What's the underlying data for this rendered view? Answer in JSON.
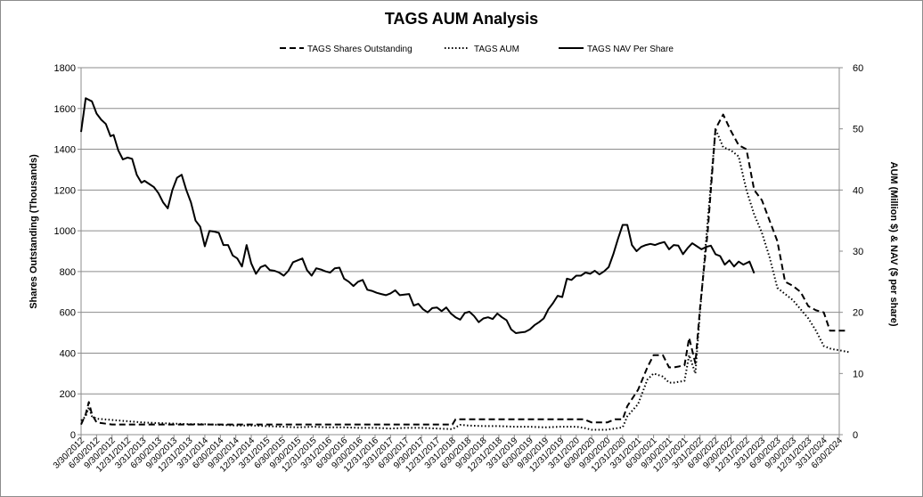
{
  "chart_data": {
    "type": "line",
    "title": "TAGS AUM Analysis",
    "ylabel_left": "Shares Outstanding (Thousands)",
    "ylabel_right": "AUM (Million $) & NAV ($ per share)",
    "ylim_left": [
      0,
      1800
    ],
    "ylim_right": [
      0,
      60
    ],
    "yticks_left": [
      "0",
      "200",
      "400",
      "600",
      "800",
      "1000",
      "1200",
      "1400",
      "1600",
      "1800"
    ],
    "yticks_right": [
      "0",
      "10",
      "20",
      "30",
      "40",
      "50",
      "60"
    ],
    "grid": "horizontal",
    "legend_position": "top",
    "x_dates": [
      "3/30/2012",
      "6/30/2012",
      "9/30/2012",
      "12/31/2012",
      "3/31/2013",
      "6/30/2013",
      "9/30/2013",
      "12/31/2013",
      "3/31/2014",
      "6/30/2014",
      "9/30/2014",
      "12/31/2014",
      "3/31/2015",
      "6/30/2015",
      "9/30/2015",
      "12/31/2015",
      "3/31/2016",
      "6/30/2016",
      "9/30/2016",
      "12/31/2016",
      "3/31/2017",
      "6/30/2017",
      "9/30/2017",
      "12/31/2017",
      "3/31/2018",
      "6/30/2018",
      "9/30/2018",
      "12/31/2018",
      "3/31/2019",
      "6/30/2019",
      "9/30/2019",
      "12/31/2019",
      "3/31/2020",
      "6/30/2020",
      "9/30/2020",
      "12/31/2020",
      "3/31/2021",
      "6/30/2021",
      "9/30/2021",
      "12/31/2021",
      "3/31/2022",
      "6/30/2022",
      "9/30/2022",
      "12/31/2022",
      "3/31/2023",
      "6/30/2023",
      "9/30/2023",
      "12/31/2023",
      "3/31/2024",
      "6/30/2024"
    ],
    "series": [
      {
        "name": "TAGS Shares Outstanding",
        "axis": "left",
        "style": "dashed",
        "color": "#000000",
        "points": [
          [
            0,
            50
          ],
          [
            0.3,
            100
          ],
          [
            0.5,
            160
          ],
          [
            0.7,
            100
          ],
          [
            1,
            60
          ],
          [
            2,
            50
          ],
          [
            3,
            50
          ],
          [
            4,
            50
          ],
          [
            5,
            50
          ],
          [
            6,
            50
          ],
          [
            7,
            50
          ],
          [
            8,
            50
          ],
          [
            9,
            50
          ],
          [
            10,
            50
          ],
          [
            11,
            50
          ],
          [
            12,
            50
          ],
          [
            13,
            50
          ],
          [
            14,
            50
          ],
          [
            15,
            50
          ],
          [
            16,
            50
          ],
          [
            17,
            50
          ],
          [
            18,
            50
          ],
          [
            19,
            50
          ],
          [
            20,
            50
          ],
          [
            21,
            50
          ],
          [
            22,
            50
          ],
          [
            23,
            50
          ],
          [
            24,
            50
          ],
          [
            24.2,
            75
          ],
          [
            25,
            75
          ],
          [
            26,
            75
          ],
          [
            27,
            75
          ],
          [
            28,
            75
          ],
          [
            29,
            75
          ],
          [
            30,
            75
          ],
          [
            31,
            75
          ],
          [
            32,
            75
          ],
          [
            32.5,
            75
          ],
          [
            33,
            60
          ],
          [
            34,
            60
          ],
          [
            34.5,
            75
          ],
          [
            35,
            75
          ],
          [
            35.3,
            140
          ],
          [
            36,
            220
          ],
          [
            36.6,
            330
          ],
          [
            37,
            390
          ],
          [
            37.6,
            390
          ],
          [
            38,
            330
          ],
          [
            38.3,
            330
          ],
          [
            39,
            340
          ],
          [
            39.3,
            475
          ],
          [
            39.7,
            350
          ],
          [
            40,
            620
          ],
          [
            40.5,
            1000
          ],
          [
            41,
            1500
          ],
          [
            41.5,
            1570
          ],
          [
            42,
            1490
          ],
          [
            42.5,
            1420
          ],
          [
            43,
            1400
          ],
          [
            43.5,
            1200
          ],
          [
            44,
            1150
          ],
          [
            44.5,
            1050
          ],
          [
            45,
            950
          ],
          [
            45.5,
            750
          ],
          [
            46,
            730
          ],
          [
            46.5,
            700
          ],
          [
            47,
            630
          ],
          [
            47.5,
            610
          ],
          [
            48,
            600
          ],
          [
            48.4,
            510
          ],
          [
            49,
            510
          ],
          [
            49.6,
            510
          ]
        ]
      },
      {
        "name": "TAGS AUM",
        "axis": "right",
        "style": "dotted",
        "color": "#000000",
        "points": [
          [
            0,
            2.3
          ],
          [
            0.3,
            3
          ],
          [
            0.5,
            4.5
          ],
          [
            0.7,
            3
          ],
          [
            1,
            2.6
          ],
          [
            2,
            2.4
          ],
          [
            3,
            2.2
          ],
          [
            4,
            2
          ],
          [
            5,
            1.9
          ],
          [
            6,
            1.8
          ],
          [
            7,
            1.7
          ],
          [
            8,
            1.7
          ],
          [
            9,
            1.6
          ],
          [
            10,
            1.5
          ],
          [
            11,
            1.5
          ],
          [
            12,
            1.4
          ],
          [
            13,
            1.3
          ],
          [
            14,
            1.2
          ],
          [
            15,
            1.3
          ],
          [
            16,
            1.2
          ],
          [
            17,
            1.2
          ],
          [
            18,
            1.1
          ],
          [
            19,
            1.1
          ],
          [
            20,
            1
          ],
          [
            21,
            1.1
          ],
          [
            22,
            1.1
          ],
          [
            23,
            1
          ],
          [
            24,
            0.9
          ],
          [
            24.5,
            1.6
          ],
          [
            25,
            1.5
          ],
          [
            26,
            1.4
          ],
          [
            27,
            1.4
          ],
          [
            28,
            1.3
          ],
          [
            29,
            1.3
          ],
          [
            30,
            1.2
          ],
          [
            31,
            1.3
          ],
          [
            32,
            1.3
          ],
          [
            32.5,
            1.1
          ],
          [
            33,
            0.8
          ],
          [
            34,
            0.8
          ],
          [
            34.5,
            1
          ],
          [
            35,
            1.2
          ],
          [
            35.3,
            3
          ],
          [
            36,
            5
          ],
          [
            36.6,
            9
          ],
          [
            37,
            10
          ],
          [
            37.6,
            9.5
          ],
          [
            38,
            8.5
          ],
          [
            38.3,
            8.5
          ],
          [
            39,
            8.8
          ],
          [
            39.3,
            13
          ],
          [
            39.7,
            10
          ],
          [
            40,
            20
          ],
          [
            40.5,
            35
          ],
          [
            41,
            50
          ],
          [
            41.5,
            47
          ],
          [
            42,
            46.5
          ],
          [
            42.5,
            45.5
          ],
          [
            43,
            40
          ],
          [
            43.5,
            36
          ],
          [
            44,
            33
          ],
          [
            44.5,
            29
          ],
          [
            45,
            24
          ],
          [
            45.5,
            23
          ],
          [
            46,
            22
          ],
          [
            46.5,
            20.5
          ],
          [
            47,
            19
          ],
          [
            47.5,
            17
          ],
          [
            48,
            14.5
          ],
          [
            48.5,
            14
          ],
          [
            49,
            13.8
          ],
          [
            49.6,
            13.5
          ]
        ]
      },
      {
        "name": "TAGS NAV Per Share",
        "axis": "right",
        "style": "solid",
        "color": "#000000",
        "points": [
          [
            0,
            49.5
          ],
          [
            0.3,
            55
          ],
          [
            0.7,
            54.5
          ],
          [
            1,
            52.5
          ],
          [
            1.3,
            51.5
          ],
          [
            1.6,
            50.8
          ],
          [
            1.9,
            48.8
          ],
          [
            2.1,
            49
          ],
          [
            2.4,
            46.5
          ],
          [
            2.7,
            45
          ],
          [
            3,
            45.3
          ],
          [
            3.3,
            45.1
          ],
          [
            3.6,
            42.5
          ],
          [
            3.9,
            41.2
          ],
          [
            4.1,
            41.5
          ],
          [
            4.4,
            41
          ],
          [
            4.7,
            40.5
          ],
          [
            5,
            39.5
          ],
          [
            5.3,
            38
          ],
          [
            5.6,
            37
          ],
          [
            5.9,
            40
          ],
          [
            6.2,
            42
          ],
          [
            6.5,
            42.5
          ],
          [
            6.8,
            40
          ],
          [
            7.1,
            38
          ],
          [
            7.4,
            35
          ],
          [
            7.7,
            34
          ],
          [
            8,
            30.8
          ],
          [
            8.3,
            33.3
          ],
          [
            8.6,
            33.2
          ],
          [
            8.9,
            33
          ],
          [
            9.2,
            31
          ],
          [
            9.5,
            31
          ],
          [
            9.8,
            29.3
          ],
          [
            10.1,
            28.8
          ],
          [
            10.4,
            27.5
          ],
          [
            10.7,
            31
          ],
          [
            11,
            28
          ],
          [
            11.3,
            26.3
          ],
          [
            11.6,
            27.4
          ],
          [
            11.9,
            27.7
          ],
          [
            12.2,
            26.9
          ],
          [
            12.5,
            26.8
          ],
          [
            12.8,
            26.5
          ],
          [
            13.1,
            26
          ],
          [
            13.4,
            26.8
          ],
          [
            13.7,
            28.2
          ],
          [
            14,
            28.5
          ],
          [
            14.3,
            28.8
          ],
          [
            14.6,
            26.9
          ],
          [
            14.9,
            26
          ],
          [
            15.2,
            27.2
          ],
          [
            15.5,
            27
          ],
          [
            15.8,
            26.7
          ],
          [
            16.1,
            26.5
          ],
          [
            16.4,
            27.2
          ],
          [
            16.7,
            27.3
          ],
          [
            17,
            25.5
          ],
          [
            17.3,
            25
          ],
          [
            17.6,
            24.3
          ],
          [
            17.9,
            25
          ],
          [
            18.2,
            25.3
          ],
          [
            18.5,
            23.7
          ],
          [
            18.8,
            23.5
          ],
          [
            19.1,
            23.2
          ],
          [
            19.4,
            23
          ],
          [
            19.7,
            22.8
          ],
          [
            20,
            23.1
          ],
          [
            20.3,
            23.6
          ],
          [
            20.6,
            22.8
          ],
          [
            20.9,
            22.9
          ],
          [
            21.2,
            23
          ],
          [
            21.5,
            21.1
          ],
          [
            21.8,
            21.4
          ],
          [
            22.1,
            20.5
          ],
          [
            22.4,
            20
          ],
          [
            22.7,
            20.7
          ],
          [
            23,
            20.8
          ],
          [
            23.3,
            20.2
          ],
          [
            23.6,
            20.8
          ],
          [
            23.9,
            19.8
          ],
          [
            24.2,
            19.2
          ],
          [
            24.5,
            18.8
          ],
          [
            24.8,
            19.9
          ],
          [
            25.1,
            20.1
          ],
          [
            25.4,
            19.4
          ],
          [
            25.7,
            18.4
          ],
          [
            26,
            19
          ],
          [
            26.3,
            19.2
          ],
          [
            26.6,
            18.9
          ],
          [
            26.9,
            19.8
          ],
          [
            27.2,
            19.2
          ],
          [
            27.5,
            18.7
          ],
          [
            27.8,
            17.2
          ],
          [
            28.1,
            16.6
          ],
          [
            28.4,
            16.7
          ],
          [
            28.7,
            16.8
          ],
          [
            29,
            17.2
          ],
          [
            29.3,
            17.9
          ],
          [
            29.6,
            18.4
          ],
          [
            29.9,
            19
          ],
          [
            30.2,
            20.5
          ],
          [
            30.5,
            21.5
          ],
          [
            30.8,
            22.7
          ],
          [
            31.1,
            22.5
          ],
          [
            31.4,
            25.5
          ],
          [
            31.7,
            25.3
          ],
          [
            32,
            26
          ],
          [
            32.3,
            26
          ],
          [
            32.6,
            26.5
          ],
          [
            32.9,
            26.3
          ],
          [
            33.2,
            26.8
          ],
          [
            33.5,
            26.2
          ],
          [
            33.8,
            26.7
          ],
          [
            34.1,
            27.4
          ],
          [
            34.4,
            29.5
          ],
          [
            34.7,
            32
          ],
          [
            35,
            34.3
          ],
          [
            35.3,
            34.3
          ],
          [
            35.6,
            31
          ],
          [
            35.9,
            30
          ],
          [
            36.2,
            30.7
          ],
          [
            36.5,
            31
          ],
          [
            36.8,
            31.2
          ],
          [
            37.1,
            31
          ],
          [
            37.4,
            31.3
          ],
          [
            37.7,
            31.5
          ],
          [
            38,
            30.3
          ],
          [
            38.3,
            31
          ],
          [
            38.6,
            30.9
          ],
          [
            38.9,
            29.5
          ],
          [
            39.2,
            30.5
          ],
          [
            39.5,
            31.3
          ],
          [
            39.8,
            30.8
          ],
          [
            40.1,
            30.3
          ],
          [
            40.4,
            30.7
          ],
          [
            40.7,
            30.9
          ],
          [
            41,
            29.5
          ],
          [
            41.3,
            29.2
          ],
          [
            41.6,
            27.8
          ],
          [
            41.9,
            28.5
          ],
          [
            42.2,
            27.5
          ],
          [
            42.5,
            28.3
          ],
          [
            42.8,
            27.8
          ],
          [
            43.2,
            28.3
          ],
          [
            43.5,
            26.4
          ]
        ]
      }
    ]
  }
}
